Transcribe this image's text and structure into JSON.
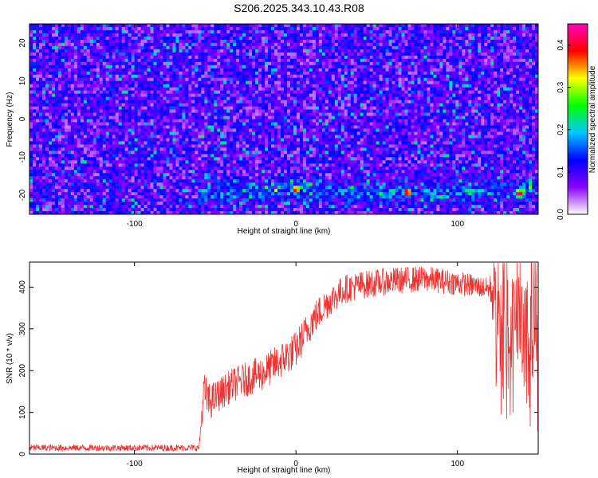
{
  "figure": {
    "title": "S206.2025.343.10.43.R08"
  },
  "chart_data": [
    {
      "type": "heatmap",
      "title": "",
      "xlabel": "Height of straight line (km)",
      "ylabel": "Frequency (Hz)",
      "xlim": [
        -165,
        150
      ],
      "ylim": [
        -25,
        25
      ],
      "xticks": [
        -100,
        0,
        100
      ],
      "yticks": [
        -20,
        -10,
        0,
        10,
        20
      ],
      "colorbar": {
        "label": "Normalized spectral amplitude",
        "range": [
          0.0,
          0.45
        ],
        "ticks": [
          0.0,
          0.1,
          0.2,
          0.3,
          0.4
        ],
        "colormap": [
          "#ffffff",
          "#8b00ff",
          "#0000ff",
          "#00c8ff",
          "#00ff00",
          "#ffff00",
          "#ff0000",
          "#ff00c0"
        ]
      },
      "features": {
        "background_band_level": 0.08,
        "signal_band_frequency_hz": -19,
        "signal_band_x_range_km": [
          -60,
          150
        ],
        "peaks": [
          {
            "x": 0,
            "y": -18.5,
            "value": 0.42
          },
          {
            "x": 69,
            "y": -19.2,
            "value": 0.45
          },
          {
            "x": 138,
            "y": -19.5,
            "value": 0.44
          },
          {
            "x": -55,
            "y": -15,
            "value": 0.22
          },
          {
            "x": 60,
            "y": -19,
            "value": 0.25
          },
          {
            "x": 108,
            "y": -19.5,
            "value": 0.22
          }
        ]
      }
    },
    {
      "type": "line",
      "title": "",
      "xlabel": "Height of straight line (km)",
      "ylabel": "SNR (10 * v/v)",
      "xlim": [
        -165,
        150
      ],
      "ylim": [
        0,
        460
      ],
      "xticks": [
        -100,
        0,
        100
      ],
      "yticks": [
        0,
        100,
        200,
        300,
        400
      ],
      "color": "#ee3333",
      "trend": {
        "x": [
          -165,
          -60,
          -57,
          -54,
          -50,
          -40,
          -20,
          0,
          10,
          20,
          30,
          40,
          60,
          80,
          100,
          115,
          122,
          125,
          135,
          150
        ],
        "y": [
          15,
          15,
          150,
          125,
          135,
          165,
          195,
          250,
          320,
          365,
          395,
          405,
          415,
          420,
          410,
          400,
          395,
          260,
          240,
          240
        ]
      },
      "noise_amplitude": {
        "x": [
          -165,
          -60,
          -57,
          -50,
          0,
          30,
          100,
          120,
          123,
          150
        ],
        "y": [
          8,
          8,
          50,
          40,
          45,
          35,
          30,
          25,
          130,
          150
        ]
      }
    }
  ]
}
